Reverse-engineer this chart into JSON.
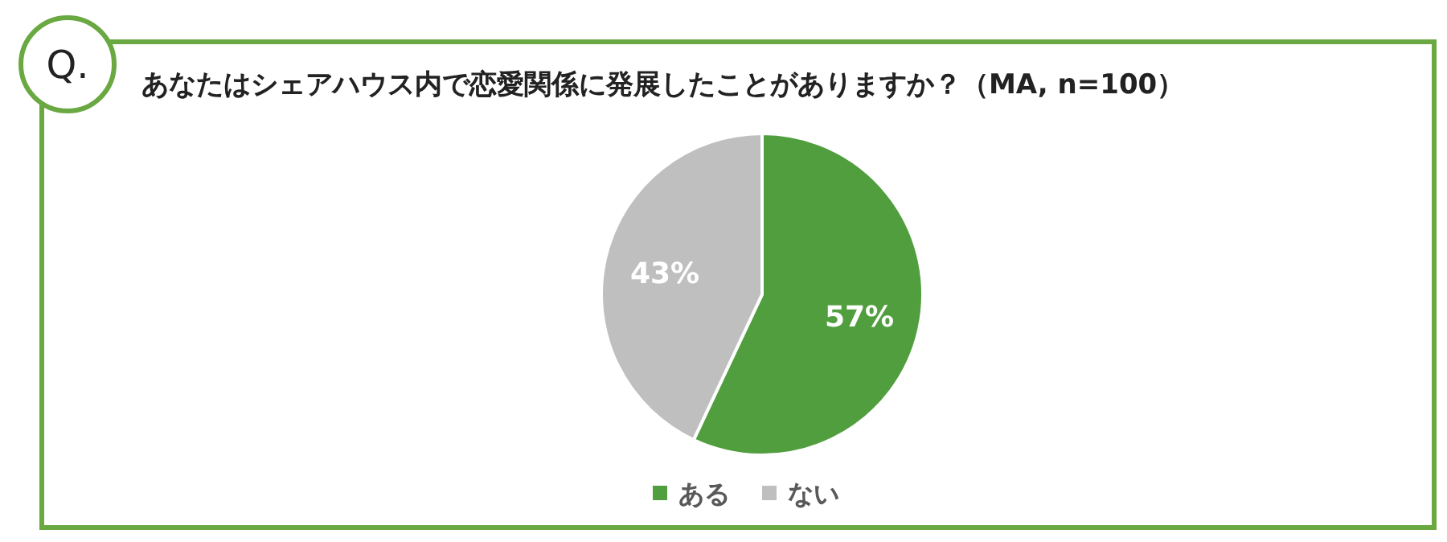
{
  "chart_data": {
    "type": "pie",
    "title": "あなたはシェアハウス内で恋愛関係に発展したことがありますか？（MA, n=100）",
    "annotations": [
      "Q."
    ],
    "categories": [
      "ある",
      "ない"
    ],
    "values": [
      57,
      43
    ],
    "colors": [
      "#519e3e",
      "#bfbfbf"
    ],
    "value_labels": [
      "57%",
      "43%"
    ],
    "legend": "bottom"
  }
}
